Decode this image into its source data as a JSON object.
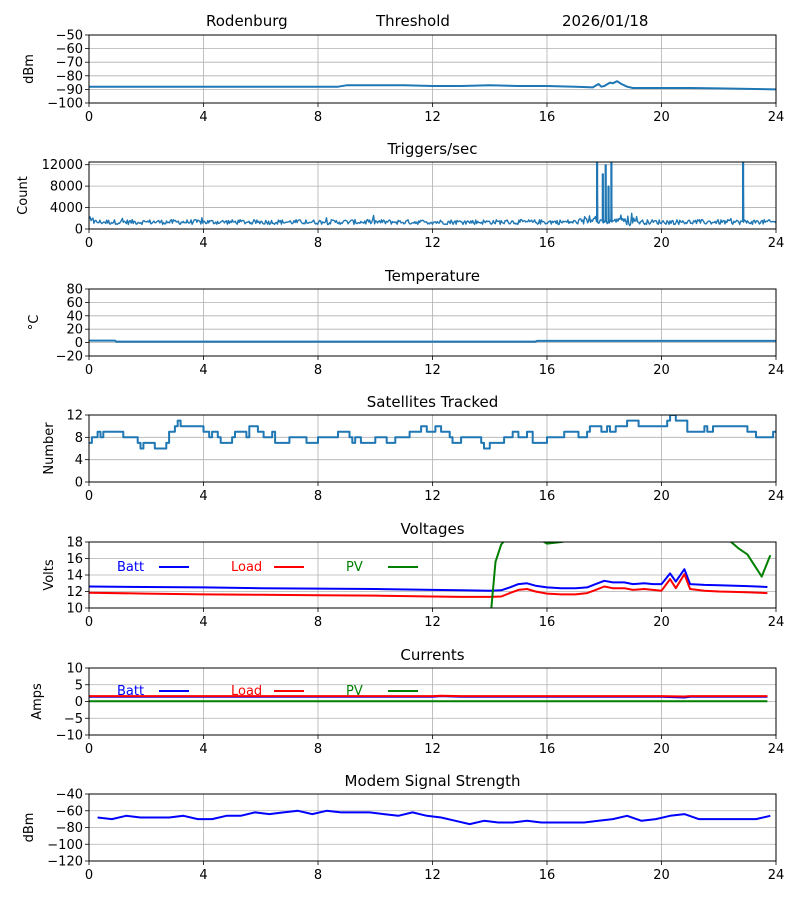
{
  "header": {
    "station": "Rodenburg",
    "panel_title": "Threshold",
    "date": "2026/01/18"
  },
  "colors": {
    "default_series": "#1f77b4",
    "batt": "#0000ff",
    "load": "#ff0000",
    "pv": "#008000",
    "grid": "#b0b0b0"
  },
  "chart_data": [
    {
      "id": "threshold",
      "type": "line",
      "title": "",
      "xlabel": "",
      "ylabel": "dBm",
      "xlim": [
        0,
        24
      ],
      "ylim": [
        -100,
        -50
      ],
      "xticks": [
        "0",
        "4",
        "8",
        "12",
        "16",
        "20",
        "24"
      ],
      "yticks": [
        "−50",
        "−60",
        "−70",
        "−80",
        "−90",
        "−100"
      ],
      "ytick_values": [
        -50,
        -60,
        -70,
        -80,
        -90,
        -100
      ],
      "grid": true,
      "series": [
        {
          "name": "Threshold",
          "color_key": "default_series",
          "x": [
            0,
            1,
            2,
            3,
            4,
            5,
            6,
            7,
            8,
            8.7,
            9,
            10,
            11,
            12,
            13,
            14,
            15,
            16,
            17,
            17.6,
            17.8,
            17.9,
            18.0,
            18.2,
            18.3,
            18.45,
            18.6,
            18.8,
            19,
            20,
            21,
            22,
            23,
            24
          ],
          "y": [
            -88,
            -88,
            -88,
            -88,
            -88,
            -88,
            -88,
            -88,
            -88,
            -88,
            -87,
            -87,
            -87,
            -87.5,
            -87.5,
            -87,
            -87.5,
            -87.5,
            -88,
            -88.5,
            -86,
            -88,
            -87.5,
            -85,
            -85.5,
            -84,
            -86,
            -88,
            -89,
            -89,
            -89,
            -89.3,
            -89.6,
            -90
          ]
        }
      ]
    },
    {
      "id": "triggers",
      "type": "line",
      "title": "Triggers/sec",
      "ylabel": "Count",
      "xlim": [
        0,
        24
      ],
      "ylim": [
        0,
        12500
      ],
      "xticks": [
        "0",
        "4",
        "8",
        "12",
        "16",
        "20",
        "24"
      ],
      "yticks": [
        "12000",
        "8000",
        "4000",
        "0"
      ],
      "ytick_values": [
        12000,
        8000,
        4000,
        0
      ],
      "grid": true,
      "series": [
        {
          "name": "Triggers",
          "color_key": "default_series",
          "baseline": 1300,
          "noise": 450,
          "spikes": [
            {
              "x": 17.75,
              "y": 12500
            },
            {
              "x": 17.95,
              "y": 10300
            },
            {
              "x": 18.05,
              "y": 12000
            },
            {
              "x": 18.15,
              "y": 8000
            },
            {
              "x": 18.25,
              "y": 12500
            },
            {
              "x": 22.85,
              "y": 12500
            }
          ]
        }
      ]
    },
    {
      "id": "temperature",
      "type": "line",
      "title": "Temperature",
      "ylabel": "°C",
      "xlim": [
        0,
        24
      ],
      "ylim": [
        -20,
        80
      ],
      "xticks": [
        "0",
        "4",
        "8",
        "12",
        "16",
        "20",
        "24"
      ],
      "yticks": [
        "80",
        "60",
        "40",
        "20",
        "0",
        "−20"
      ],
      "ytick_values": [
        80,
        60,
        40,
        20,
        0,
        -20
      ],
      "grid": true,
      "series": [
        {
          "name": "Temperature",
          "color_key": "default_series",
          "x": [
            0,
            0.9,
            0.95,
            15.6,
            15.65,
            24
          ],
          "y": [
            3,
            3,
            1.5,
            1.5,
            2.5,
            2.5
          ]
        }
      ]
    },
    {
      "id": "satellites",
      "type": "line",
      "title": "Satellites Tracked",
      "ylabel": "Number",
      "xlim": [
        0,
        24
      ],
      "ylim": [
        0,
        12
      ],
      "xticks": [
        "0",
        "4",
        "8",
        "12",
        "16",
        "20",
        "24"
      ],
      "yticks": [
        "12",
        "8",
        "4",
        "0"
      ],
      "ytick_values": [
        12,
        8,
        4,
        0
      ],
      "grid": true,
      "series": [
        {
          "name": "Satellites",
          "color_key": "default_series",
          "step": true,
          "x": [
            0,
            0.1,
            0.3,
            0.4,
            0.5,
            0.8,
            1.2,
            1.7,
            1.8,
            1.9,
            2.3,
            2.7,
            2.8,
            3.0,
            3.1,
            3.2,
            4.0,
            4.2,
            4.3,
            4.5,
            4.6,
            5.0,
            5.1,
            5.5,
            5.6,
            5.9,
            6.1,
            6.4,
            6.5,
            7.0,
            7.3,
            7.6,
            8.0,
            8.7,
            9.1,
            9.2,
            9.3,
            9.5,
            10.0,
            10.4,
            10.7,
            11.2,
            11.6,
            11.8,
            12.1,
            12.3,
            12.6,
            12.7,
            13.0,
            13.7,
            13.8,
            14.0,
            14.5,
            14.8,
            15.0,
            15.3,
            15.5,
            16.0,
            16.3,
            16.6,
            17.1,
            17.4,
            17.5,
            17.9,
            18.1,
            18.2,
            18.4,
            18.8,
            19.2,
            19.9,
            20.2,
            20.3,
            20.5,
            20.9,
            21.5,
            21.6,
            21.8,
            23.0,
            23.3,
            23.9
          ],
          "y": [
            7,
            8,
            9,
            8,
            9,
            9,
            8,
            7,
            6,
            7,
            6,
            7,
            9,
            10,
            11,
            10,
            9,
            8,
            9,
            8,
            7,
            8,
            9,
            8,
            10,
            9,
            8,
            9,
            7,
            8,
            8,
            7,
            8,
            9,
            8,
            7,
            8,
            7,
            8,
            7,
            8,
            9,
            10,
            9,
            10,
            9,
            8,
            7,
            8,
            7,
            6,
            7,
            8,
            9,
            8,
            9,
            7,
            8,
            8,
            9,
            8,
            9,
            10,
            9,
            10,
            9,
            10,
            11,
            10,
            10,
            11,
            12,
            11,
            9,
            10,
            9,
            10,
            9,
            8,
            9
          ]
        }
      ]
    },
    {
      "id": "voltages",
      "type": "line",
      "title": "Voltages",
      "ylabel": "Volts",
      "xlim": [
        0,
        24
      ],
      "ylim": [
        10,
        18
      ],
      "xticks": [
        "0",
        "4",
        "8",
        "12",
        "16",
        "20",
        "24"
      ],
      "yticks": [
        "18",
        "16",
        "14",
        "12",
        "10"
      ],
      "ytick_values": [
        18,
        16,
        14,
        12,
        10
      ],
      "grid": true,
      "legend": {
        "placement": "top-left",
        "entries": [
          "Batt",
          "Load",
          "PV"
        ]
      },
      "series": [
        {
          "name": "Batt",
          "color_key": "batt",
          "x": [
            0,
            2,
            4,
            6,
            8,
            10,
            12,
            13,
            14,
            14.4,
            14.7,
            15.0,
            15.3,
            15.6,
            16.0,
            16.5,
            17.0,
            17.4,
            17.7,
            18.0,
            18.3,
            18.7,
            19.0,
            19.4,
            19.7,
            20.0,
            20.3,
            20.5,
            20.8,
            21.0,
            21.5,
            22,
            23,
            23.7
          ],
          "y": [
            12.6,
            12.55,
            12.5,
            12.4,
            12.35,
            12.3,
            12.2,
            12.15,
            12.1,
            12.15,
            12.5,
            12.9,
            13.0,
            12.7,
            12.5,
            12.4,
            12.4,
            12.5,
            12.9,
            13.3,
            13.1,
            13.1,
            12.9,
            13.0,
            12.9,
            12.9,
            14.2,
            13.2,
            14.7,
            12.9,
            12.8,
            12.75,
            12.65,
            12.55
          ]
        },
        {
          "name": "Load",
          "color_key": "load",
          "x": [
            0,
            2,
            4,
            6,
            8,
            10,
            12,
            13,
            14,
            14.4,
            14.7,
            15.0,
            15.3,
            15.6,
            16.0,
            16.5,
            17.0,
            17.4,
            17.7,
            18.0,
            18.3,
            18.7,
            19.0,
            19.4,
            19.7,
            20.0,
            20.3,
            20.5,
            20.8,
            21.0,
            21.5,
            22,
            23,
            23.7
          ],
          "y": [
            11.85,
            11.75,
            11.65,
            11.6,
            11.55,
            11.5,
            11.4,
            11.35,
            11.35,
            11.4,
            11.8,
            12.2,
            12.3,
            12.0,
            11.75,
            11.65,
            11.65,
            11.8,
            12.2,
            12.6,
            12.4,
            12.4,
            12.2,
            12.3,
            12.2,
            12.1,
            13.5,
            12.4,
            14.1,
            12.3,
            12.1,
            12.0,
            11.9,
            11.8
          ]
        },
        {
          "name": "PV",
          "color_key": "pv",
          "x": [
            14.05,
            14.2,
            14.4,
            14.6,
            15.0,
            15.6,
            16.0,
            16.5,
            17.0,
            21.5,
            22.0,
            22.4,
            22.7,
            23.0,
            23.5,
            23.8
          ],
          "y": [
            9.8,
            15.6,
            17.7,
            18.5,
            19.0,
            18.6,
            17.8,
            18.0,
            18.3,
            19.5,
            18.5,
            18.1,
            17.2,
            16.5,
            13.8,
            16.4
          ]
        }
      ]
    },
    {
      "id": "currents",
      "type": "line",
      "title": "Currents",
      "ylabel": "Amps",
      "xlim": [
        0,
        24
      ],
      "ylim": [
        -10,
        10
      ],
      "xticks": [
        "0",
        "4",
        "8",
        "12",
        "16",
        "20",
        "24"
      ],
      "yticks": [
        "10",
        "5",
        "0",
        "−5",
        "−10"
      ],
      "ytick_values": [
        10,
        5,
        0,
        -5,
        -10
      ],
      "grid": true,
      "legend": {
        "placement": "top-left",
        "entries": [
          "Batt",
          "Load",
          "PV"
        ]
      },
      "series": [
        {
          "name": "Batt",
          "color_key": "batt",
          "x": [
            0,
            4,
            8,
            12,
            12.3,
            13,
            16,
            20,
            20.8,
            21,
            23.7
          ],
          "y": [
            1.4,
            1.4,
            1.4,
            1.4,
            1.6,
            1.4,
            1.4,
            1.4,
            1.2,
            1.4,
            1.4
          ]
        },
        {
          "name": "Load",
          "color_key": "load",
          "x": [
            0,
            4,
            8,
            12,
            12.3,
            13,
            16,
            20,
            20.8,
            21,
            23.7
          ],
          "y": [
            1.6,
            1.6,
            1.6,
            1.6,
            1.7,
            1.6,
            1.6,
            1.6,
            1.5,
            1.6,
            1.6
          ]
        },
        {
          "name": "PV",
          "color_key": "pv",
          "x": [
            0,
            23.7
          ],
          "y": [
            0.1,
            0.1
          ]
        }
      ]
    },
    {
      "id": "modem",
      "type": "line",
      "title": "Modem Signal Strength",
      "ylabel": "dBm",
      "xlim": [
        0,
        24
      ],
      "ylim": [
        -120,
        -40
      ],
      "xticks": [
        "0",
        "4",
        "8",
        "12",
        "16",
        "20",
        "24"
      ],
      "yticks": [
        "−40",
        "−60",
        "−80",
        "−100",
        "−120"
      ],
      "ytick_values": [
        -40,
        -60,
        -80,
        -100,
        -120
      ],
      "grid": true,
      "series": [
        {
          "name": "Modem",
          "color_key": "batt",
          "x": [
            0.3,
            0.8,
            1.3,
            1.8,
            2.3,
            2.8,
            3.3,
            3.8,
            4.3,
            4.8,
            5.3,
            5.8,
            6.3,
            6.8,
            7.3,
            7.8,
            8.3,
            8.8,
            9.3,
            9.8,
            10.3,
            10.8,
            11.3,
            11.8,
            12.3,
            12.8,
            13.3,
            13.8,
            14.3,
            14.8,
            15.3,
            15.8,
            16.3,
            16.8,
            17.3,
            17.8,
            18.3,
            18.8,
            19.3,
            19.8,
            20.3,
            20.8,
            21.3,
            21.8,
            22.3,
            22.8,
            23.3,
            23.8
          ],
          "y": [
            -68,
            -70,
            -66,
            -68,
            -68,
            -68,
            -66,
            -70,
            -70,
            -66,
            -66,
            -62,
            -64,
            -62,
            -60,
            -64,
            -60,
            -62,
            -62,
            -62,
            -64,
            -66,
            -62,
            -66,
            -68,
            -72,
            -76,
            -72,
            -74,
            -74,
            -72,
            -74,
            -74,
            -74,
            -74,
            -72,
            -70,
            -66,
            -72,
            -70,
            -66,
            -64,
            -70,
            -70,
            -70,
            -70,
            -70,
            -66
          ]
        }
      ]
    }
  ]
}
